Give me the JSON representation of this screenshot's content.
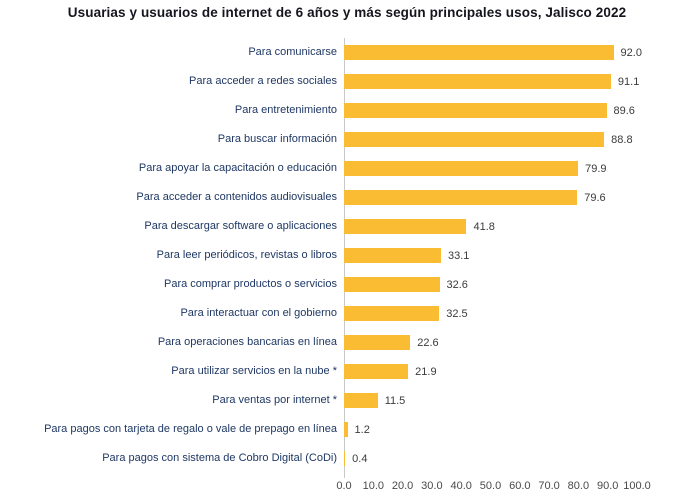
{
  "title": "Usuarias y usuarios de internet de 6 años y más según principales usos, Jalisco 2022",
  "chart_data": {
    "type": "bar",
    "orientation": "horizontal",
    "title": "Usuarias y usuarios de internet de 6 años y más según principales usos, Jalisco 2022",
    "categories": [
      "Para comunicarse",
      "Para acceder a redes sociales",
      "Para entretenimiento",
      "Para buscar información",
      "Para apoyar la capacitación o educación",
      "Para acceder a contenidos audiovisuales",
      "Para descargar software o aplicaciones",
      "Para leer periódicos, revistas o libros",
      "Para comprar productos o servicios",
      "Para interactuar con el gobierno",
      "Para operaciones bancarias en línea",
      "Para utilizar servicios en la nube *",
      "Para ventas por internet *",
      "Para pagos con tarjeta de regalo o vale de prepago en línea",
      "Para pagos con sistema de Cobro Digital (CoDi)"
    ],
    "values": [
      92.0,
      91.1,
      89.6,
      88.8,
      79.9,
      79.6,
      41.8,
      33.1,
      32.6,
      32.5,
      22.6,
      21.9,
      11.5,
      1.2,
      0.4
    ],
    "x_tick_labels": [
      "0.0",
      "10.0",
      "20.0",
      "30.0",
      "40.0",
      "50.0",
      "60.0",
      "70.0",
      "80.0",
      "90.0",
      "100.0"
    ],
    "xlim": [
      0,
      100
    ],
    "xlabel": "",
    "ylabel": "",
    "grid": false,
    "legend": false,
    "data_labels": true,
    "colors": {
      "bar": "#fabc32",
      "category_label": "#1f3864",
      "value_label": "#3b3b3b",
      "tick_label": "#4a4a4a",
      "axis_line": "#c9c9c9",
      "title": "#15151e"
    }
  }
}
